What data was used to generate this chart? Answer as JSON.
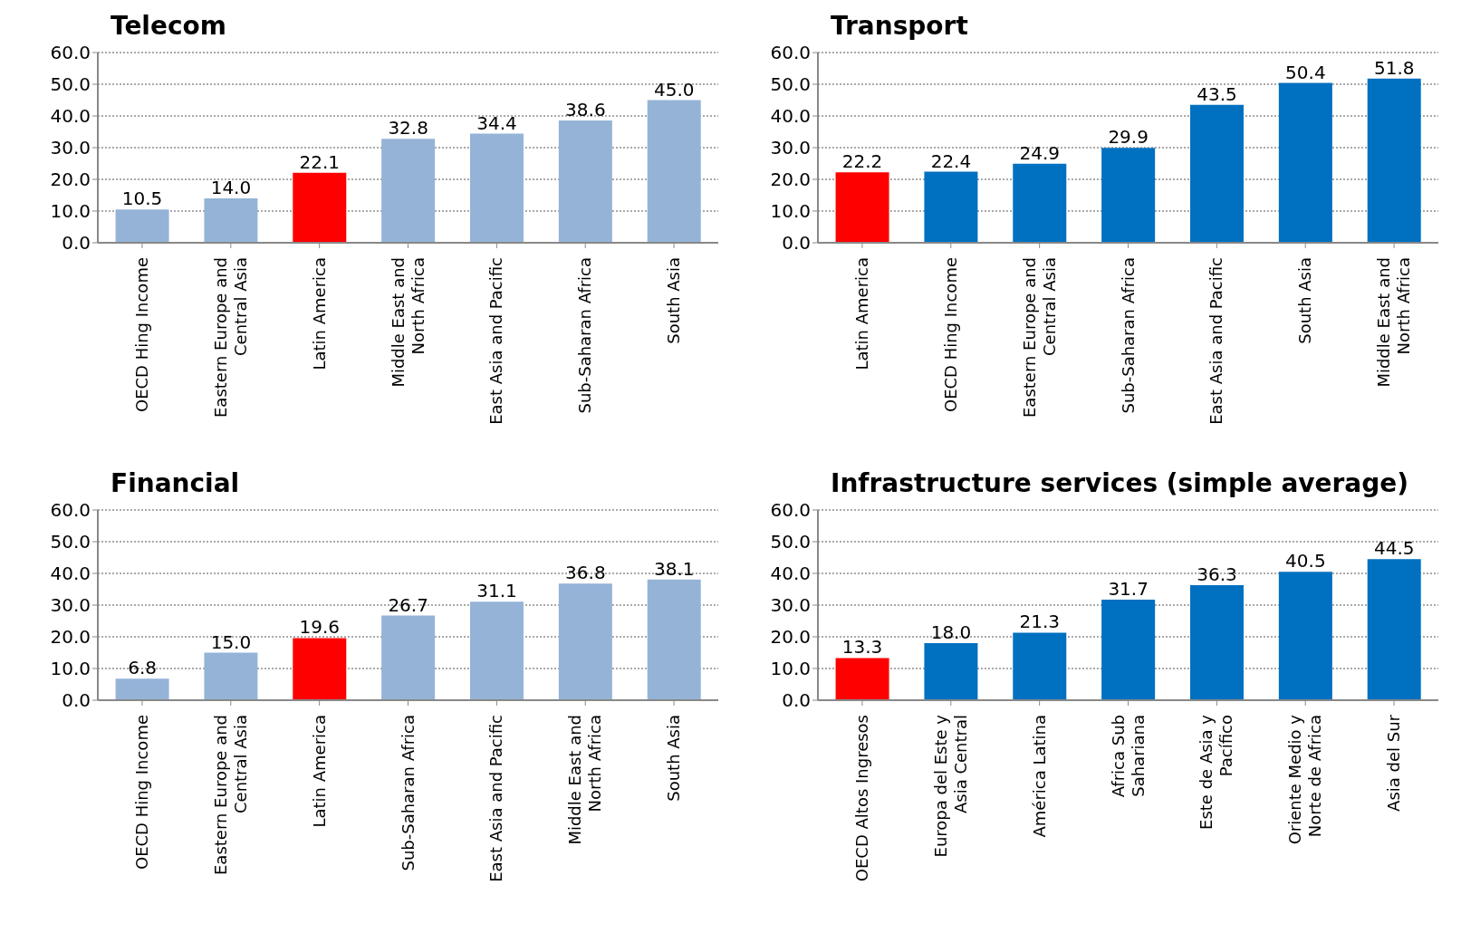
{
  "chart_data": [
    {
      "type": "bar",
      "title": "Telecom",
      "categories": [
        "OECD Hing Income",
        "Eastern Europe and\nCentral Asia",
        "Latin America",
        "Middle East and\nNorth Africa",
        "East Asia and Pacific",
        "Sub-Saharan Africa",
        "South Asia"
      ],
      "values": [
        10.5,
        14.0,
        22.1,
        32.8,
        34.4,
        38.6,
        45.0
      ],
      "value_labels": [
        "10.5",
        "14.0",
        "22.1",
        "32.8",
        "34.4",
        "38.6",
        "45.0"
      ],
      "colors": [
        "#95b3d7",
        "#95b3d7",
        "#ff0000",
        "#95b3d7",
        "#95b3d7",
        "#95b3d7",
        "#95b3d7"
      ],
      "ylim": [
        0,
        60
      ],
      "yticks": [
        {
          "value": 0,
          "label": "0.0"
        },
        {
          "value": 10,
          "label": "10.0"
        },
        {
          "value": 20,
          "label": "20.0"
        },
        {
          "value": 30,
          "label": "30.0"
        },
        {
          "value": 40,
          "label": "40.0"
        },
        {
          "value": 50,
          "label": "50.0"
        },
        {
          "value": 60,
          "label": "60.0"
        }
      ],
      "grid": "y",
      "legend": false
    },
    {
      "type": "bar",
      "title": "Transport",
      "categories": [
        "Latin America",
        "OECD Hing Income",
        "Eastern Europe and\nCentral Asia",
        "Sub-Saharan Africa",
        "East Asia and Pacific",
        "South Asia",
        "Middle East and\nNorth Africa"
      ],
      "values": [
        22.2,
        22.4,
        24.9,
        29.9,
        43.5,
        50.4,
        51.8
      ],
      "value_labels": [
        "22.2",
        "22.4",
        "24.9",
        "29.9",
        "43.5",
        "50.4",
        "51.8"
      ],
      "colors": [
        "#ff0000",
        "#0070c0",
        "#0070c0",
        "#0070c0",
        "#0070c0",
        "#0070c0",
        "#0070c0"
      ],
      "ylim": [
        0,
        60
      ],
      "yticks": [
        {
          "value": 0,
          "label": "0.0"
        },
        {
          "value": 10,
          "label": "10.0"
        },
        {
          "value": 20,
          "label": "20.0"
        },
        {
          "value": 30,
          "label": "30.0"
        },
        {
          "value": 40,
          "label": "40.0"
        },
        {
          "value": 50,
          "label": "50.0"
        },
        {
          "value": 60,
          "label": "60.0"
        }
      ],
      "grid": "y",
      "legend": false
    },
    {
      "type": "bar",
      "title": "Financial",
      "categories": [
        "OECD Hing Income",
        "Eastern Europe and\nCentral Asia",
        "Latin America",
        "Sub-Saharan Africa",
        "East Asia and Pacific",
        "Middle East and\nNorth Africa",
        "South Asia"
      ],
      "values": [
        6.8,
        15.0,
        19.6,
        26.7,
        31.1,
        36.8,
        38.1
      ],
      "value_labels": [
        "6.8",
        "15.0",
        "19.6",
        "26.7",
        "31.1",
        "36.8",
        "38.1"
      ],
      "colors": [
        "#95b3d7",
        "#95b3d7",
        "#ff0000",
        "#95b3d7",
        "#95b3d7",
        "#95b3d7",
        "#95b3d7"
      ],
      "ylim": [
        0,
        60
      ],
      "yticks": [
        {
          "value": 0,
          "label": "0.0"
        },
        {
          "value": 10,
          "label": "10.0"
        },
        {
          "value": 20,
          "label": "20.0"
        },
        {
          "value": 30,
          "label": "30.0"
        },
        {
          "value": 40,
          "label": "40.0"
        },
        {
          "value": 50,
          "label": "50.0"
        },
        {
          "value": 60,
          "label": "60.0"
        }
      ],
      "grid": "y",
      "legend": false
    },
    {
      "type": "bar",
      "title": "Infrastructure services (simple average)",
      "categories": [
        "OECD Altos Ingresos",
        "Europa del Este y\nAsia Central",
        "América Latina",
        "Africa Sub\nSahariana",
        "Este de Asia y\nPacífico",
        "Oriente Medio y\nNorte de Africa",
        "Asia del Sur"
      ],
      "values": [
        13.3,
        18.0,
        21.3,
        31.7,
        36.3,
        40.5,
        44.5
      ],
      "value_labels": [
        "13.3",
        "18.0",
        "21.3",
        "31.7",
        "36.3",
        "40.5",
        "44.5"
      ],
      "colors": [
        "#ff0000",
        "#0070c0",
        "#0070c0",
        "#0070c0",
        "#0070c0",
        "#0070c0",
        "#0070c0"
      ],
      "ylim": [
        0,
        60
      ],
      "yticks": [
        {
          "value": 0,
          "label": "0.0"
        },
        {
          "value": 10,
          "label": "10.0"
        },
        {
          "value": 20,
          "label": "20.0"
        },
        {
          "value": 30,
          "label": "30.0"
        },
        {
          "value": 40,
          "label": "40.0"
        },
        {
          "value": 50,
          "label": "50.0"
        },
        {
          "value": 60,
          "label": "60.0"
        }
      ],
      "grid": "y",
      "legend": false
    }
  ]
}
